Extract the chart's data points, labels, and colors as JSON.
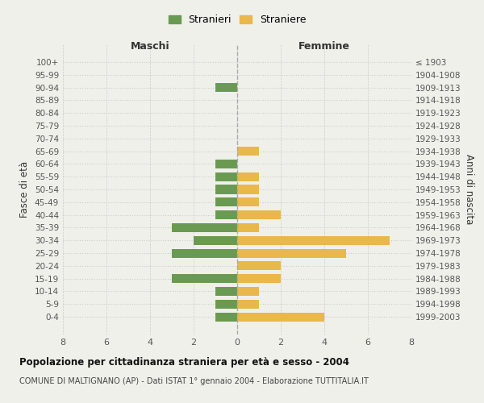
{
  "age_groups": [
    "100+",
    "95-99",
    "90-94",
    "85-89",
    "80-84",
    "75-79",
    "70-74",
    "65-69",
    "60-64",
    "55-59",
    "50-54",
    "45-49",
    "40-44",
    "35-39",
    "30-34",
    "25-29",
    "20-24",
    "15-19",
    "10-14",
    "5-9",
    "0-4"
  ],
  "birth_years": [
    "≤ 1903",
    "1904-1908",
    "1909-1913",
    "1914-1918",
    "1919-1923",
    "1924-1928",
    "1929-1933",
    "1934-1938",
    "1939-1943",
    "1944-1948",
    "1949-1953",
    "1954-1958",
    "1959-1963",
    "1964-1968",
    "1969-1973",
    "1974-1978",
    "1979-1983",
    "1984-1988",
    "1989-1993",
    "1994-1998",
    "1999-2003"
  ],
  "males": [
    0,
    0,
    1,
    0,
    0,
    0,
    0,
    0,
    1,
    1,
    1,
    1,
    1,
    3,
    2,
    3,
    0,
    3,
    1,
    1,
    1
  ],
  "females": [
    0,
    0,
    0,
    0,
    0,
    0,
    0,
    1,
    0,
    1,
    1,
    1,
    2,
    1,
    7,
    5,
    2,
    2,
    1,
    1,
    4
  ],
  "male_color": "#6a9a52",
  "female_color": "#e8b84b",
  "title": "Popolazione per cittadinanza straniera per età e sesso - 2004",
  "subtitle": "COMUNE DI MALTIGNANO (AP) - Dati ISTAT 1° gennaio 2004 - Elaborazione TUTTITALIA.IT",
  "xlabel_left": "Maschi",
  "xlabel_right": "Femmine",
  "ylabel_left": "Fasce di età",
  "ylabel_right": "Anni di nascita",
  "legend_males": "Stranieri",
  "legend_females": "Straniere",
  "xlim": 8,
  "background_color": "#f0f0eb",
  "grid_color": "#cccccc"
}
